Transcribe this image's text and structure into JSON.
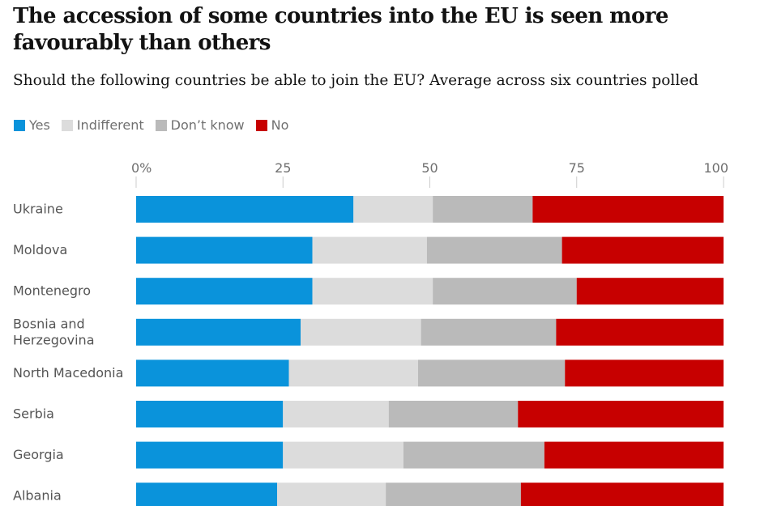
{
  "chart_data": {
    "type": "bar",
    "orientation": "horizontal",
    "stacked": true,
    "title": "The accession of some countries into the EU is seen more favourably than others",
    "subtitle": "Should the following countries be able to join the EU? Average across six countries polled",
    "legend_position": "top-left",
    "xlim": [
      0,
      100
    ],
    "x_ticks": [
      "0%",
      "25",
      "50",
      "75",
      "100"
    ],
    "x_tick_values": [
      0,
      25,
      50,
      75,
      100
    ],
    "categories": [
      "Ukraine",
      "Moldova",
      "Montenegro",
      "Bosnia and Herzegovina",
      "North Macedonia",
      "Serbia",
      "Georgia",
      "Albania"
    ],
    "category_lines": [
      [
        "Ukraine"
      ],
      [
        "Moldova"
      ],
      [
        "Montenegro"
      ],
      [
        "Bosnia and",
        "Herzegovina"
      ],
      [
        "North Macedonia"
      ],
      [
        "Serbia"
      ],
      [
        "Georgia"
      ],
      [
        "Albania"
      ]
    ],
    "series": [
      {
        "name": "Yes",
        "color": "#0a93db",
        "values": [
          37,
          30,
          30,
          28,
          26,
          25,
          25,
          24
        ]
      },
      {
        "name": "Indifferent",
        "color": "#dcdcdc",
        "values": [
          13.5,
          19.5,
          20.5,
          20.5,
          22,
          18,
          20.5,
          18.5
        ]
      },
      {
        "name": "Don’t know",
        "color": "#bababa",
        "values": [
          17,
          23,
          24.5,
          23,
          25,
          22,
          24,
          23
        ]
      },
      {
        "name": "No",
        "color": "#c70000",
        "values": [
          32.5,
          27.5,
          25,
          28.5,
          27,
          35,
          30.5,
          34.5
        ]
      }
    ]
  }
}
